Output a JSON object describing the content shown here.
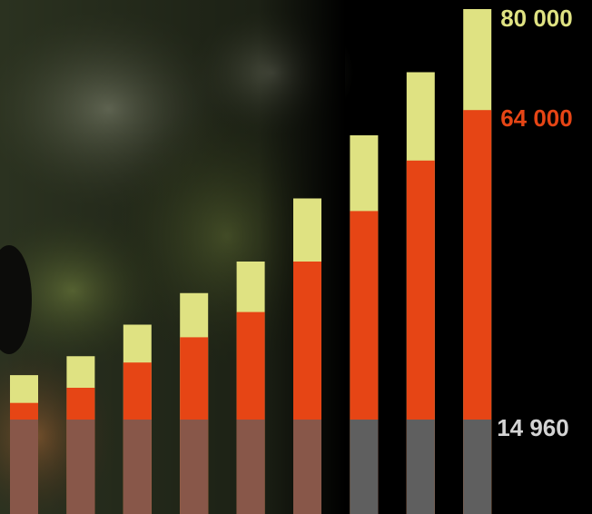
{
  "chart_data": {
    "type": "bar",
    "ylim": [
      0,
      80000
    ],
    "series": [
      {
        "color": "#dfe282",
        "values": [
          22000,
          25000,
          30000,
          35000,
          40000,
          50000,
          60000,
          70000,
          80000
        ],
        "value_labels": [
          null,
          null,
          null,
          null,
          null,
          null,
          null,
          null,
          "80 000"
        ]
      },
      {
        "color": "#e64515",
        "values": [
          17600,
          20000,
          24000,
          28000,
          32000,
          40000,
          48000,
          56000,
          64000
        ],
        "value_labels": [
          null,
          null,
          null,
          null,
          null,
          null,
          null,
          null,
          "64 000"
        ]
      },
      {
        "color": "#5f5f5f",
        "values": [
          14960,
          14960,
          14960,
          14960,
          14960,
          14960,
          14960,
          14960,
          14960
        ],
        "value_labels": [
          null,
          null,
          null,
          null,
          null,
          null,
          null,
          null,
          "14 960"
        ]
      }
    ]
  }
}
